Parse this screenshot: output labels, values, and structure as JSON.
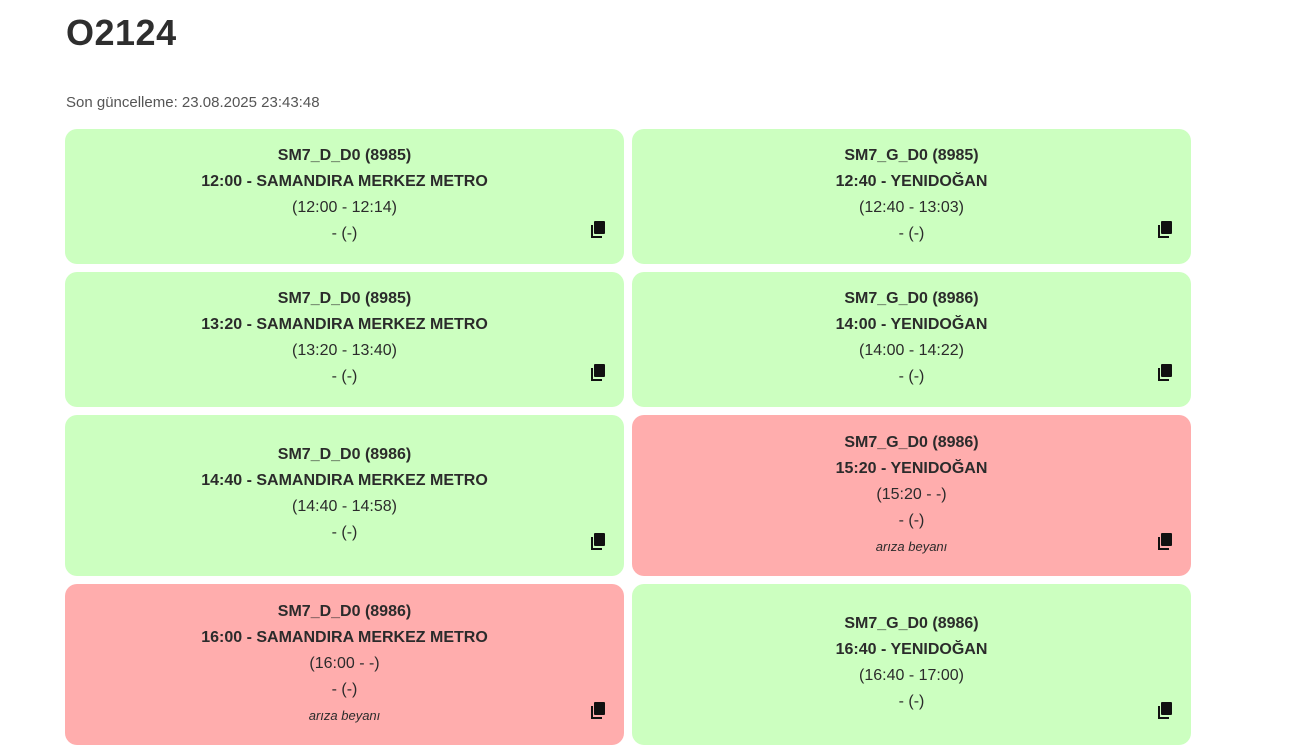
{
  "header": {
    "title": "O2124",
    "last_update": "Son güncelleme: 23.08.2025 23:43:48"
  },
  "colors": {
    "ok": "#ccffc0",
    "fault": "#ffadad"
  },
  "icons": {
    "copy": "copy-icon"
  },
  "cards": [
    {
      "route": "SM7_D_D0 (8985)",
      "trip": "12:00 - SAMANDIRA MERKEZ METRO",
      "times": "(12:00 - 12:14)",
      "extra": "- (-)",
      "note": "",
      "status": "ok"
    },
    {
      "route": "SM7_G_D0 (8985)",
      "trip": "12:40 - YENIDOĞAN",
      "times": "(12:40 - 13:03)",
      "extra": "- (-)",
      "note": "",
      "status": "ok"
    },
    {
      "route": "SM7_D_D0 (8985)",
      "trip": "13:20 - SAMANDIRA MERKEZ METRO",
      "times": "(13:20 - 13:40)",
      "extra": "- (-)",
      "note": "",
      "status": "ok"
    },
    {
      "route": "SM7_G_D0 (8986)",
      "trip": "14:00 - YENIDOĞAN",
      "times": "(14:00 - 14:22)",
      "extra": "- (-)",
      "note": "",
      "status": "ok"
    },
    {
      "route": "SM7_D_D0 (8986)",
      "trip": "14:40 - SAMANDIRA MERKEZ METRO",
      "times": "(14:40 - 14:58)",
      "extra": "- (-)",
      "note": "",
      "status": "ok"
    },
    {
      "route": "SM7_G_D0 (8986)",
      "trip": "15:20 - YENIDOĞAN",
      "times": "(15:20 - -)",
      "extra": "- (-)",
      "note": "arıza beyanı",
      "status": "fault"
    },
    {
      "route": "SM7_D_D0 (8986)",
      "trip": "16:00 - SAMANDIRA MERKEZ METRO",
      "times": "(16:00 - -)",
      "extra": "- (-)",
      "note": "arıza beyanı",
      "status": "fault"
    },
    {
      "route": "SM7_G_D0 (8986)",
      "trip": "16:40 - YENIDOĞAN",
      "times": "(16:40 - 17:00)",
      "extra": "- (-)",
      "note": "",
      "status": "ok"
    }
  ]
}
